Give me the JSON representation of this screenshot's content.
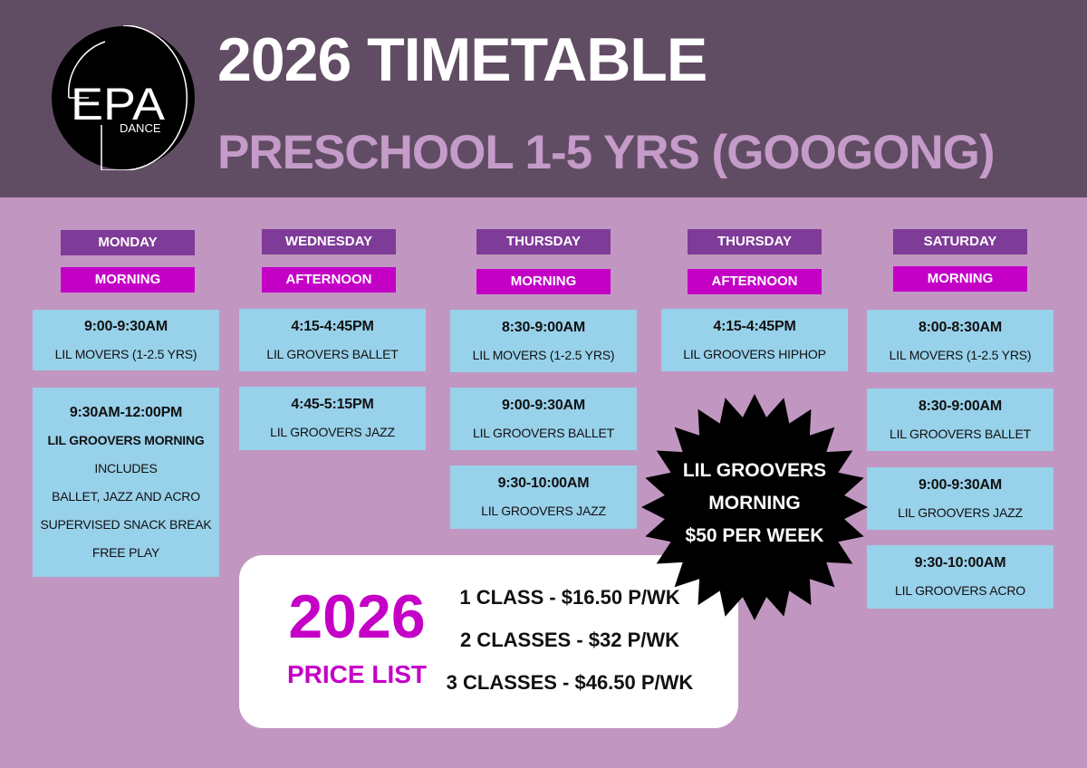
{
  "header": {
    "logo_text": "EPA",
    "logo_subtext": "DANCE",
    "title": "2026 TIMETABLE",
    "subtitle": "PRESCHOOL 1-5 YRS (GOOGONG)"
  },
  "colors": {
    "header_bg": "#614d63",
    "body_bg": "#c197c1",
    "day": "#7f3b98",
    "period": "#c400c7",
    "card": "#98d1ea"
  },
  "columns": [
    {
      "day": "MONDAY",
      "period": "MORNING",
      "classes": [
        {
          "time": "9:00-9:30AM",
          "lines": [
            "LIL MOVERS (1-2.5 YRS)"
          ]
        },
        {
          "time": "9:30AM-12:00PM",
          "lines": [
            "LIL GROOVERS MORNING",
            "INCLUDES",
            "BALLET, JAZZ AND ACRO",
            "SUPERVISED SNACK BREAK",
            "FREE PLAY"
          ]
        }
      ]
    },
    {
      "day": "WEDNESDAY",
      "period": "AFTERNOON",
      "classes": [
        {
          "time": "4:15-4:45PM",
          "lines": [
            "LIL GROVERS BALLET"
          ]
        },
        {
          "time": "4:45-5:15PM",
          "lines": [
            "LIL GROOVERS JAZZ"
          ]
        }
      ]
    },
    {
      "day": "THURSDAY",
      "period": "MORNING",
      "classes": [
        {
          "time": "8:30-9:00AM",
          "lines": [
            "LIL MOVERS (1-2.5 YRS)"
          ]
        },
        {
          "time": "9:00-9:30AM",
          "lines": [
            "LIL GROOVERS BALLET"
          ]
        },
        {
          "time": "9:30-10:00AM",
          "lines": [
            "LIL GROOVERS JAZZ"
          ]
        }
      ]
    },
    {
      "day": "THURSDAY",
      "period": "AFTERNOON",
      "classes": [
        {
          "time": "4:15-4:45PM",
          "lines": [
            "LIL GROOVERS HIPHOP"
          ]
        }
      ]
    },
    {
      "day": "SATURDAY",
      "period": "MORNING",
      "classes": [
        {
          "time": "8:00-8:30AM",
          "lines": [
            "LIL MOVERS (1-2.5 YRS)"
          ]
        },
        {
          "time": "8:30-9:00AM",
          "lines": [
            "LIL GROOVERS BALLET"
          ]
        },
        {
          "time": "9:00-9:30AM",
          "lines": [
            "LIL GROOVERS JAZZ"
          ]
        },
        {
          "time": "9:30-10:00AM",
          "lines": [
            "LIL GROOVERS ACRO"
          ]
        }
      ]
    }
  ],
  "price_list": {
    "year": "2026",
    "label": "PRICE LIST",
    "items": [
      "1 CLASS - $16.50 P/WK",
      "2 CLASSES - $32 P/WK",
      "3 CLASSES - $46.50 P/WK"
    ]
  },
  "promo": {
    "lines": [
      "LIL GROOVERS",
      "MORNING",
      "$50 PER WEEK"
    ]
  }
}
